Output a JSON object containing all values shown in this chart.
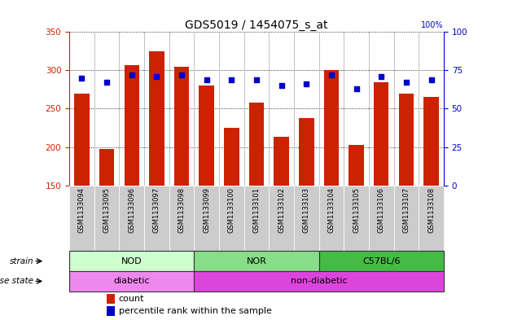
{
  "title": "GDS5019 / 1454075_s_at",
  "samples": [
    "GSM1133094",
    "GSM1133095",
    "GSM1133096",
    "GSM1133097",
    "GSM1133098",
    "GSM1133099",
    "GSM1133100",
    "GSM1133101",
    "GSM1133102",
    "GSM1133103",
    "GSM1133104",
    "GSM1133105",
    "GSM1133106",
    "GSM1133107",
    "GSM1133108"
  ],
  "counts": [
    270,
    197,
    307,
    325,
    305,
    280,
    225,
    258,
    213,
    238,
    300,
    203,
    285,
    270,
    265
  ],
  "percentiles": [
    70,
    67,
    72,
    71,
    72,
    69,
    69,
    69,
    65,
    66,
    72,
    63,
    71,
    67,
    69
  ],
  "ymin": 150,
  "ymax": 350,
  "y2min": 0,
  "y2max": 100,
  "yticks": [
    150,
    200,
    250,
    300,
    350
  ],
  "y2ticks": [
    0,
    25,
    50,
    75,
    100
  ],
  "bar_color": "#cc2200",
  "dot_color": "#0000cc",
  "grid_color": "black",
  "strain_groups": [
    {
      "label": "NOD",
      "start": 0,
      "end": 5,
      "color": "#ccffcc"
    },
    {
      "label": "NOR",
      "start": 5,
      "end": 10,
      "color": "#88dd88"
    },
    {
      "label": "C57BL/6",
      "start": 10,
      "end": 15,
      "color": "#44bb44"
    }
  ],
  "disease_groups": [
    {
      "label": "diabetic",
      "start": 0,
      "end": 5,
      "color": "#ee88ee"
    },
    {
      "label": "non-diabetic",
      "start": 5,
      "end": 15,
      "color": "#dd44dd"
    }
  ],
  "strain_label": "strain",
  "disease_label": "disease state",
  "legend_count": "count",
  "legend_percentile": "percentile rank within the sample",
  "bar_width": 0.6,
  "tick_bg_color": "#cccccc"
}
